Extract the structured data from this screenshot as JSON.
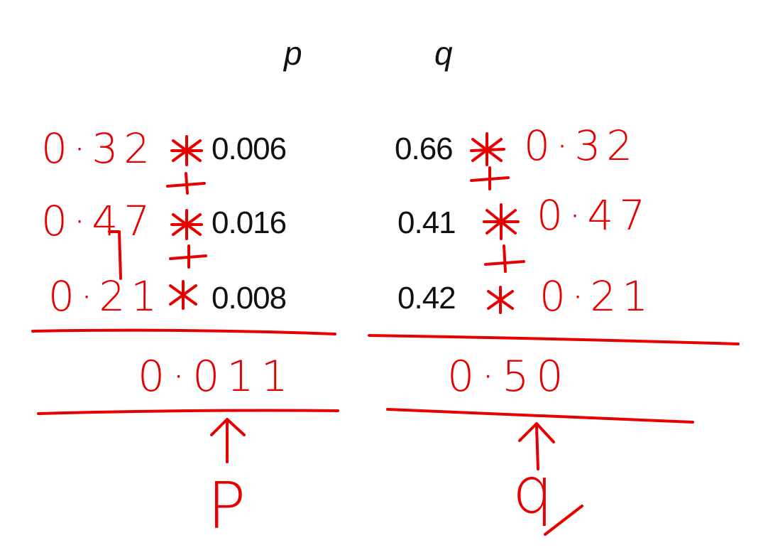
{
  "headers": {
    "p": "p",
    "q": "q"
  },
  "p_column": {
    "typed": [
      "0.006",
      "0.016",
      "0.008"
    ],
    "handwritten_weights": [
      "0·32",
      "0·47",
      "0·21"
    ],
    "result": "0·011",
    "label": "P"
  },
  "q_column": {
    "typed": [
      "0.66",
      "0.41",
      "0.42"
    ],
    "handwritten_weights": [
      "0·32",
      "0·47",
      "0·21"
    ],
    "result": "0·50",
    "label": "q"
  },
  "ink_color": "#e60000",
  "text_color": "#111111"
}
